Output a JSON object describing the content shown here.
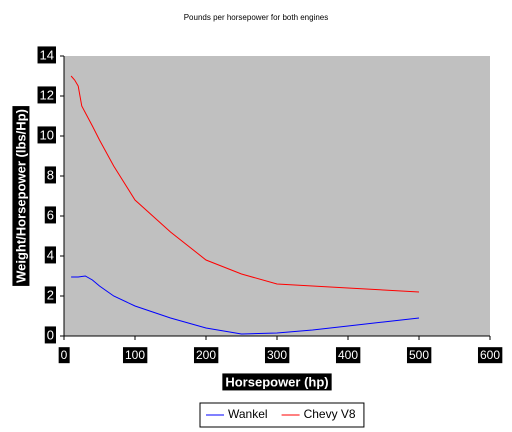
{
  "chart_data": {
    "type": "line",
    "title": "Pounds per horsepower for both engines",
    "x_label": "Horsepower (hp)",
    "y_label": "Weight/Horsepower (lbs/Hp)",
    "series": [
      {
        "name": "Wankel",
        "color": "#0000ff",
        "x": [
          10,
          20,
          30,
          40,
          50,
          70,
          100,
          150,
          200,
          250,
          300,
          350,
          400,
          450,
          500
        ],
        "values": [
          2.95,
          2.95,
          3.0,
          2.8,
          2.5,
          2.0,
          1.5,
          0.9,
          0.4,
          0.1,
          0.15,
          0.3,
          0.5,
          0.7,
          0.9
        ]
      },
      {
        "name": "Chevy V8",
        "color": "#ff0000",
        "x": [
          10,
          15,
          20,
          25,
          40,
          50,
          70,
          100,
          150,
          200,
          250,
          300,
          350,
          400,
          450,
          500
        ],
        "values": [
          13.0,
          12.8,
          12.5,
          11.5,
          10.5,
          9.8,
          8.5,
          6.8,
          5.2,
          3.8,
          3.1,
          2.6,
          2.5,
          2.4,
          2.3,
          2.2
        ]
      }
    ],
    "xlim": [
      0,
      600
    ],
    "xticks": [
      0,
      100,
      200,
      300,
      400,
      500,
      600
    ],
    "ylim": [
      0,
      14
    ],
    "yticks": [
      0,
      2,
      4,
      6,
      8,
      10,
      12,
      14
    ],
    "grid": false,
    "legend": "bottom"
  }
}
